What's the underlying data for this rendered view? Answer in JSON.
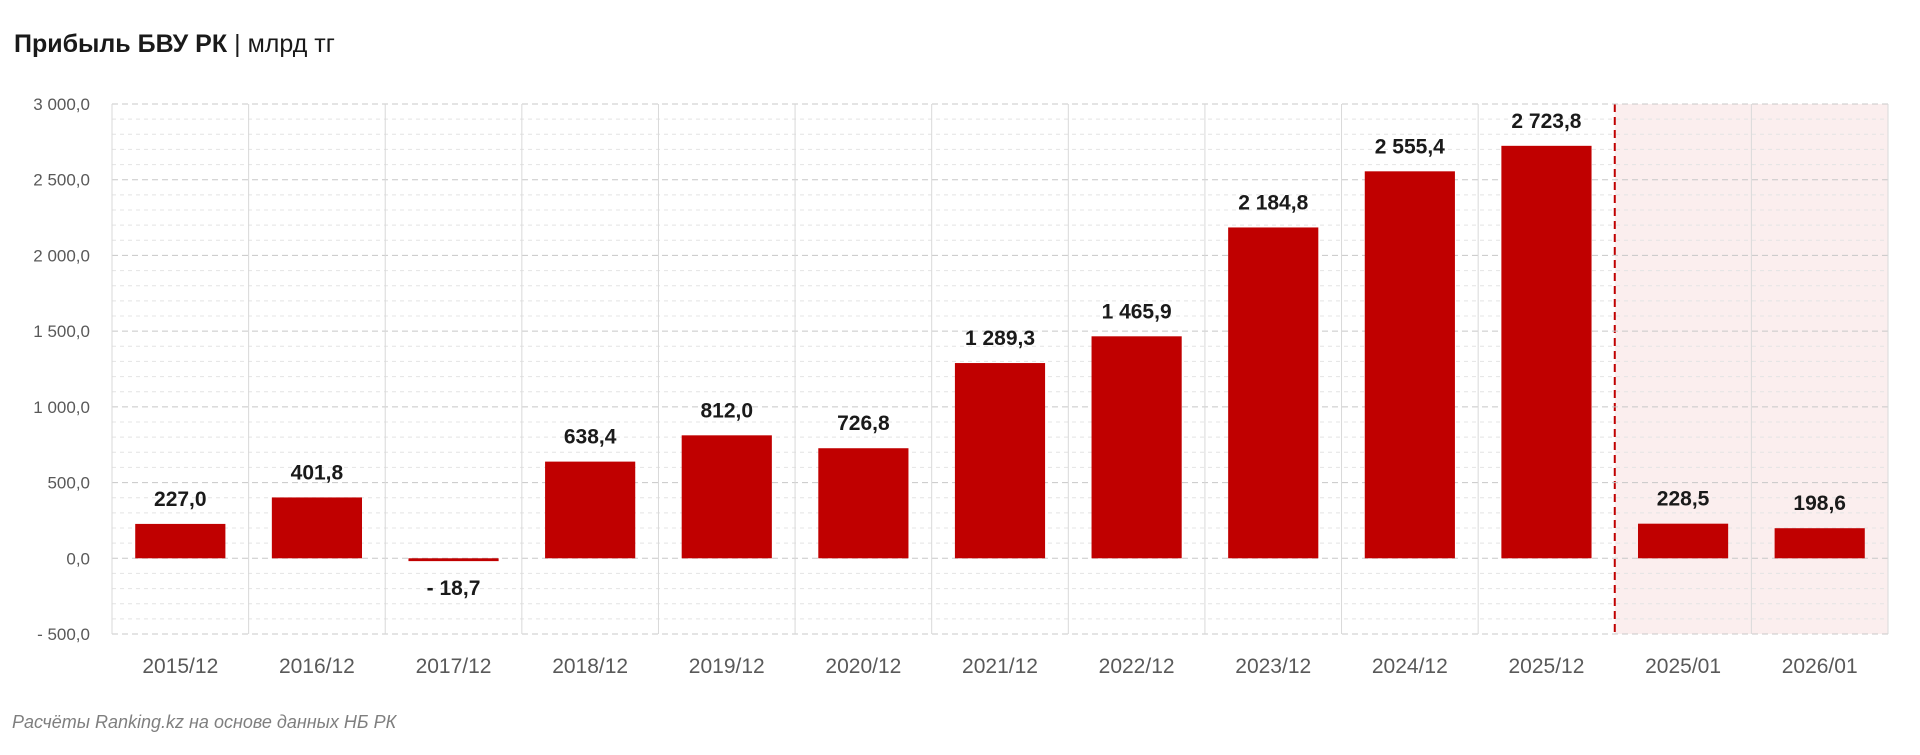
{
  "title": {
    "main": "Прибыль БВУ РК",
    "separator": "|",
    "unit": "млрд тг"
  },
  "source": "Расчёты Ranking.kz на основе данных НБ РК",
  "chart_data": {
    "type": "bar",
    "title": "Прибыль БВУ РК | млрд тг",
    "categories": [
      "2015/12",
      "2016/12",
      "2017/12",
      "2018/12",
      "2019/12",
      "2020/12",
      "2021/12",
      "2022/12",
      "2023/12",
      "2024/12",
      "2025/12",
      "2025/01",
      "2026/01"
    ],
    "values": [
      227.0,
      401.8,
      -18.7,
      638.4,
      812.0,
      726.8,
      1289.3,
      1465.9,
      2184.8,
      2555.4,
      2723.8,
      228.5,
      198.6
    ],
    "data_labels": [
      "227,0",
      "401,8",
      "- 18,7",
      "638,4",
      "812,0",
      "726,8",
      "1 289,3",
      "1 465,9",
      "2 184,8",
      "2 555,4",
      "2 723,8",
      "228,5",
      "198,6"
    ],
    "ylim": [
      -500,
      3000
    ],
    "yticks": [
      3000,
      2500,
      2000,
      1500,
      1000,
      500,
      0,
      -500
    ],
    "ytick_labels": [
      "3 000,0",
      "2 500,0",
      "2 000,0",
      "1 500,0",
      "1 000,0",
      "500,0",
      "0,0",
      "- 500,0"
    ],
    "grid": true,
    "highlighted_categories": [
      "2025/01",
      "2026/01"
    ],
    "colors": {
      "bar": "#c00000",
      "highlight_background": "#fbeeee",
      "highlight_divider": "#c00000",
      "gridline": "#d9d9d9"
    }
  }
}
